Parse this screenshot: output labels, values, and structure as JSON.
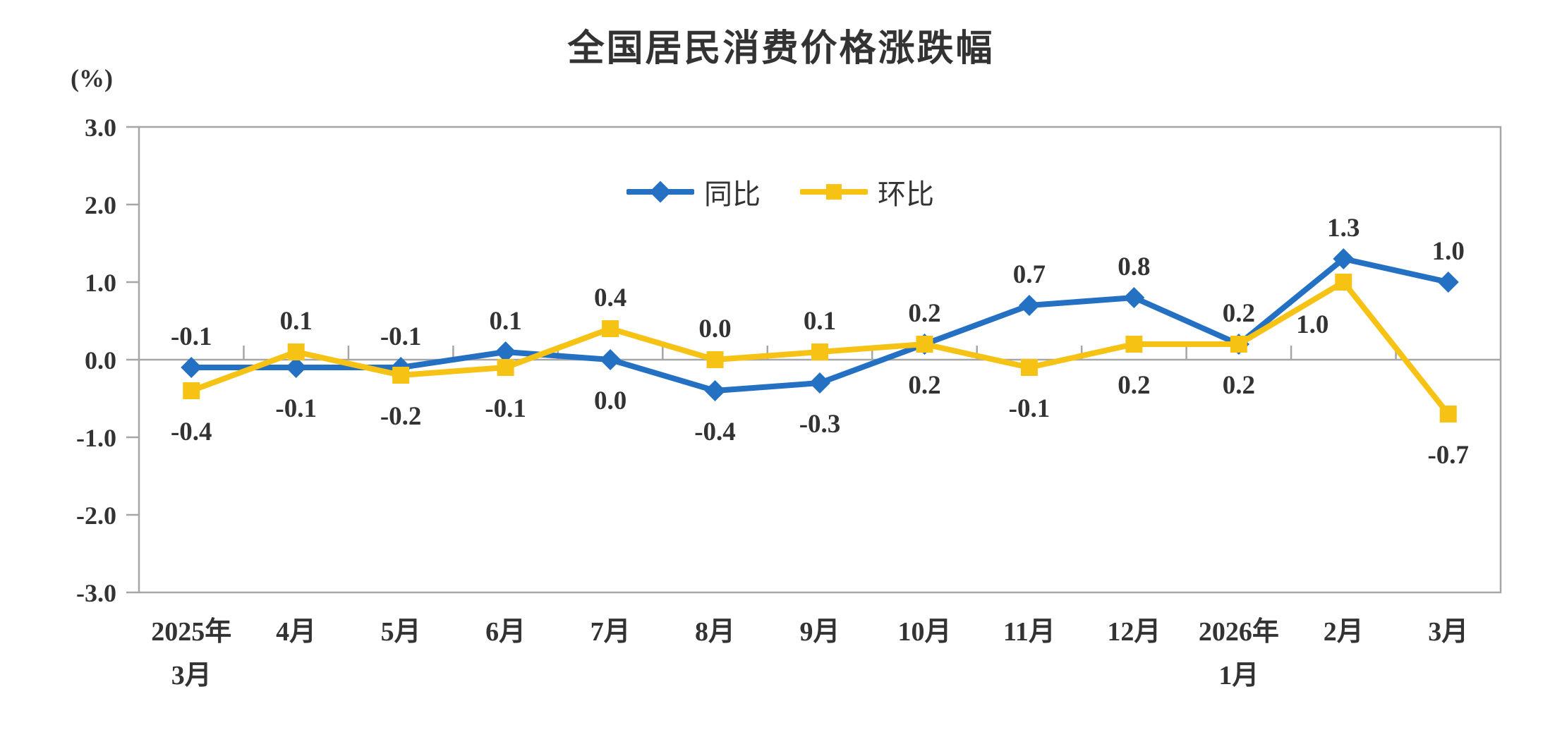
{
  "chart_data": {
    "type": "line",
    "title": "全国居民消费价格涨跌幅",
    "unit_label": "(%)",
    "categories": [
      [
        "2025年",
        "3月"
      ],
      [
        "4月"
      ],
      [
        "5月"
      ],
      [
        "6月"
      ],
      [
        "7月"
      ],
      [
        "8月"
      ],
      [
        "9月"
      ],
      [
        "10月"
      ],
      [
        "11月"
      ],
      [
        "12月"
      ],
      [
        "2026年",
        "1月"
      ],
      [
        "2月"
      ],
      [
        "3月"
      ]
    ],
    "series": [
      {
        "name": "同比",
        "color": "#2470C2",
        "marker": "diamond",
        "values": [
          -0.1,
          -0.1,
          -0.1,
          0.1,
          0.0,
          -0.4,
          -0.3,
          0.2,
          0.7,
          0.8,
          0.2,
          1.3,
          1.0
        ],
        "label_pos": [
          "above",
          "below",
          "above",
          "above",
          "below",
          "below",
          "below",
          "above",
          "above",
          "above",
          "above",
          "above",
          "above"
        ]
      },
      {
        "name": "环比",
        "color": "#F6C213",
        "marker": "square",
        "values": [
          -0.4,
          0.1,
          -0.2,
          -0.1,
          0.4,
          0.0,
          0.1,
          0.2,
          -0.1,
          0.2,
          0.2,
          1.0,
          -0.7
        ],
        "label_pos": [
          "below",
          "above",
          "below",
          "below",
          "above",
          "above",
          "above",
          "below",
          "below",
          "below",
          "below",
          "below",
          "below"
        ],
        "label_offsets": {
          "11": {
            "dx": -44,
            "dy": 2
          }
        }
      }
    ],
    "ylim": [
      -3,
      3
    ],
    "ytick_step": 1,
    "ytick_labels": [
      "3.0",
      "2.0",
      "1.0",
      "0.0",
      "-1.0",
      "-2.0",
      "-3.0"
    ],
    "grid": "zero-line-only",
    "legend_position": "top-center-inside",
    "axis_color": "#A6A6A6",
    "text_color": "#333333"
  }
}
